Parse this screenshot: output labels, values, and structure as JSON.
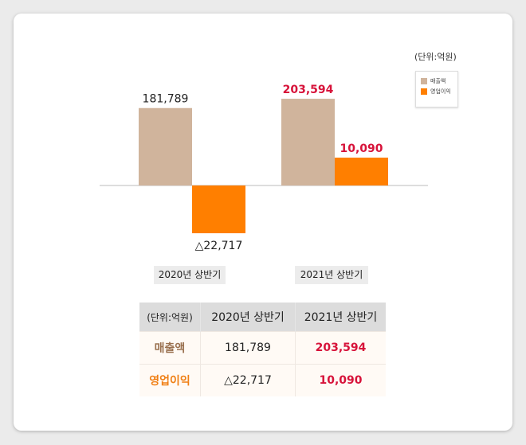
{
  "chart_data": {
    "type": "bar",
    "unit_label": "(단위:억원)",
    "categories": [
      "2020년 상반기",
      "2021년 상반기"
    ],
    "series": [
      {
        "name": "매출액",
        "values": [
          181789,
          203594
        ],
        "labels": [
          "181,789",
          "203,594"
        ],
        "color": "#d0b49c"
      },
      {
        "name": "영업이익",
        "values": [
          -22717,
          10090
        ],
        "labels": [
          "△22,717",
          "10,090"
        ],
        "color": "#ff7f00"
      }
    ],
    "legend": "top-right",
    "highlight_color": "#d7133a"
  },
  "table": {
    "headers": [
      "(단위:억원)",
      "2020년 상반기",
      "2021년 상반기"
    ],
    "rows": [
      {
        "label": "매출액",
        "v2020": "181,789",
        "v2021": "203,594"
      },
      {
        "label": "영업이익",
        "v2020": "△22,717",
        "v2021": "10,090"
      }
    ]
  }
}
